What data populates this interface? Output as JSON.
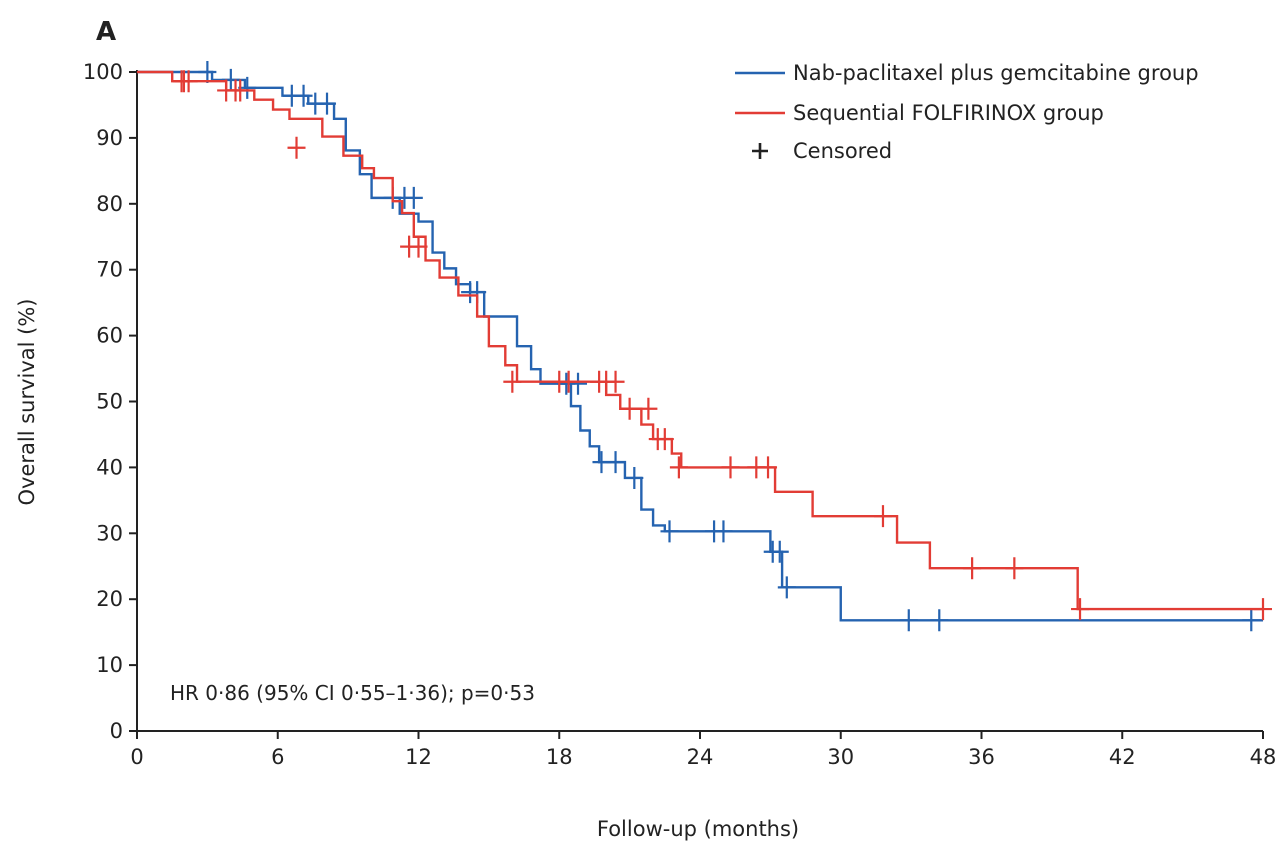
{
  "panel_label": "A",
  "chart_data": {
    "type": "line",
    "step": "post",
    "xlabel": "Follow-up (months)",
    "ylabel": "Overall survival (%)",
    "xlim": [
      0,
      48
    ],
    "ylim": [
      0,
      100
    ],
    "xticks": [
      0,
      6,
      12,
      18,
      24,
      30,
      36,
      42,
      48
    ],
    "yticks": [
      0,
      10,
      20,
      30,
      40,
      50,
      60,
      70,
      80,
      90,
      100
    ],
    "grid": false,
    "legend_position": "top-right",
    "annotation": "HR 0·86 (95% CI 0·55–1·36); p=0·53",
    "censored_label": "Censored",
    "series": [
      {
        "name": "Nab-paclitaxel plus gemcitabine group",
        "color": "#2563b0",
        "x": [
          0,
          3.2,
          4.6,
          6.2,
          7.3,
          8.4,
          8.9,
          9.5,
          10.0,
          10.5,
          11.2,
          12.0,
          12.6,
          13.1,
          13.6,
          14.2,
          14.8,
          16.2,
          16.8,
          17.2,
          18.5,
          18.9,
          19.3,
          19.7,
          20.8,
          21.5,
          22.0,
          22.5,
          27.0,
          27.5,
          30.0,
          48.0
        ],
        "y": [
          100,
          98.8,
          97.6,
          96.4,
          95.2,
          92.9,
          88.1,
          84.5,
          80.9,
          80.9,
          78.5,
          77.3,
          72.6,
          70.2,
          67.8,
          66.6,
          62.9,
          58.4,
          54.9,
          52.7,
          49.3,
          45.6,
          43.2,
          40.8,
          38.4,
          33.6,
          31.2,
          30.3,
          27.2,
          21.8,
          16.8,
          16.8
        ],
        "censored_x": [
          3.0,
          4.0,
          4.7,
          6.6,
          7.1,
          7.6,
          8.1,
          10.9,
          11.4,
          11.8,
          14.2,
          14.5,
          18.3,
          18.8,
          19.8,
          20.4,
          21.2,
          22.7,
          24.6,
          25.0,
          27.1,
          27.4,
          27.7,
          32.9,
          34.2,
          47.5
        ],
        "censored_y": [
          100,
          98.8,
          97.6,
          96.4,
          96.4,
          95.2,
          95.2,
          80.9,
          80.9,
          80.9,
          66.6,
          66.6,
          52.7,
          52.7,
          40.8,
          40.8,
          38.4,
          30.3,
          30.3,
          30.3,
          27.2,
          27.2,
          21.8,
          16.8,
          16.8,
          16.8
        ]
      },
      {
        "name": "Sequential FOLFIRINOX group",
        "color": "#e23c35",
        "x": [
          0,
          1.5,
          3.8,
          5.0,
          5.8,
          6.5,
          7.9,
          8.8,
          9.6,
          10.1,
          10.9,
          11.3,
          11.8,
          12.3,
          12.9,
          13.7,
          14.5,
          15.0,
          15.7,
          16.2,
          20.0,
          20.6,
          21.5,
          22.0,
          22.8,
          23.2,
          27.2,
          28.8,
          32.4,
          33.8,
          40.1,
          48.0
        ],
        "y": [
          100,
          98.6,
          97.2,
          95.8,
          94.3,
          92.9,
          90.2,
          87.3,
          85.4,
          83.9,
          80.4,
          78.6,
          75.0,
          71.4,
          68.8,
          66.1,
          62.9,
          58.4,
          55.5,
          53.0,
          51.0,
          48.9,
          46.5,
          44.3,
          42.1,
          40.0,
          36.3,
          32.6,
          28.6,
          24.7,
          18.5,
          18.5
        ],
        "censored_x": [
          1.9,
          2.0,
          2.2,
          3.8,
          4.2,
          4.4,
          6.8,
          11.6,
          12.0,
          16.0,
          18.0,
          18.4,
          19.7,
          20.0,
          20.4,
          21.0,
          21.8,
          22.2,
          22.5,
          23.1,
          25.3,
          26.4,
          26.9,
          31.8,
          35.6,
          37.4,
          40.2,
          48.0
        ],
        "censored_y": [
          98.6,
          98.6,
          98.6,
          97.2,
          97.2,
          97.2,
          88.5,
          73.5,
          73.5,
          53.0,
          53.0,
          53.0,
          53.0,
          53.0,
          53.0,
          48.9,
          48.9,
          44.3,
          44.3,
          40.0,
          40.0,
          40.0,
          40.0,
          32.6,
          24.7,
          24.7,
          18.5,
          18.5
        ]
      }
    ]
  }
}
